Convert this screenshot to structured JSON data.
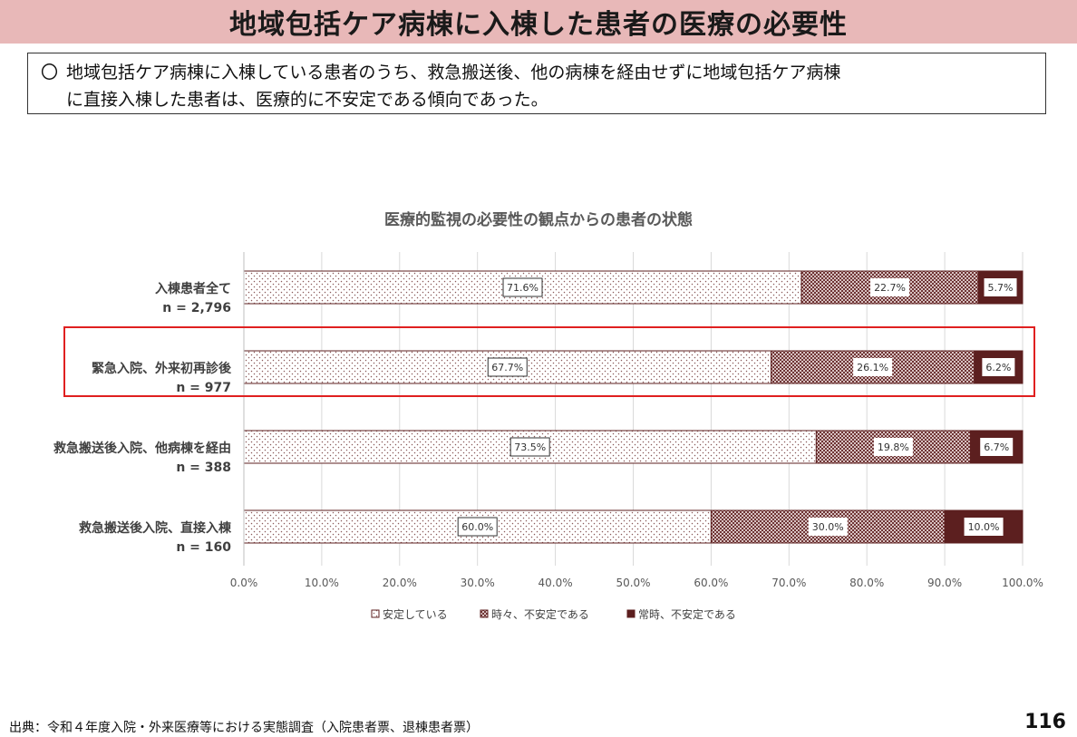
{
  "slide": {
    "title": "地域包括ケア病棟に入棟した患者の医療の必要性",
    "summary_bullet": "〇",
    "summary_line1": "地域包括ケア病棟に入棟している患者のうち、救急搬送後、他の病棟を経由せずに地域包括ケア病棟",
    "summary_line2": "に直接入棟した患者は、医療的に不安定である傾向であった。",
    "source": "出典：令和４年度入院・外来医療等における実態調査（入院患者票、退棟患者票）",
    "page_number": "116"
  },
  "chart_data": {
    "type": "bar",
    "orientation": "horizontal",
    "stacked": true,
    "title": "医療的監視の必要性の観点からの患者の状態",
    "categories": [
      {
        "label": "入棟患者全て",
        "n": "n = 2,796"
      },
      {
        "label": "緊急入院、外来初再診後",
        "n": "n = 977"
      },
      {
        "label": "救急搬送後入院、他病棟を経由",
        "n": "n = 388"
      },
      {
        "label": "救急搬送後入院、直接入棟",
        "n": "n = 160"
      }
    ],
    "series": [
      {
        "name": "安定している",
        "values": [
          71.6,
          67.7,
          73.5,
          60.0
        ],
        "labels": [
          "71.6%",
          "67.7%",
          "73.5%",
          "60.0%"
        ],
        "pattern": "dots-light"
      },
      {
        "name": "時々、不安定である",
        "values": [
          22.7,
          26.1,
          19.8,
          30.0
        ],
        "labels": [
          "22.7%",
          "26.1%",
          "19.8%",
          "30.0%"
        ],
        "pattern": "checker"
      },
      {
        "name": "常時、不安定である",
        "values": [
          5.7,
          6.2,
          6.7,
          10.0
        ],
        "labels": [
          "5.7%",
          "6.2%",
          "6.7%",
          "10.0%"
        ],
        "pattern": "solid-dark"
      }
    ],
    "xlim": [
      0,
      100
    ],
    "x_ticks": [
      "0.0%",
      "10.0%",
      "20.0%",
      "30.0%",
      "40.0%",
      "50.0%",
      "60.0%",
      "70.0%",
      "80.0%",
      "90.0%",
      "100.0%"
    ],
    "grid": true,
    "legend_position": "bottom",
    "highlighted_category": "緊急入院、外来初再診後",
    "colors": {
      "dark": "#5c1f1f",
      "mid": "#8a4a4a",
      "light_bg": "#ffffff",
      "grid": "#d9d9d9",
      "highlight": "#e02020"
    }
  }
}
